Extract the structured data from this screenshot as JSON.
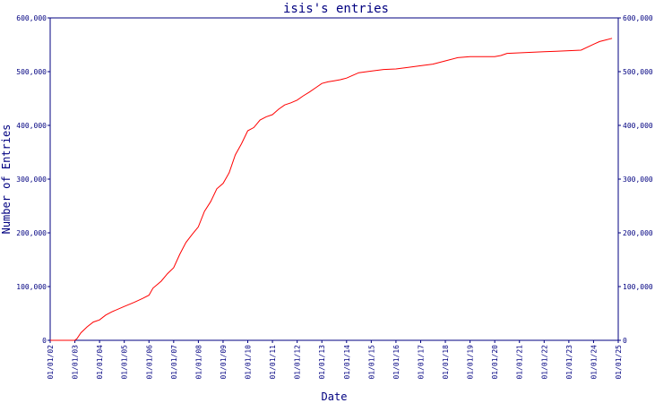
{
  "chart_data": {
    "type": "line",
    "title": "isis's entries",
    "xlabel": "Date",
    "ylabel": "Number of Entries",
    "x_ticks": [
      "01/01/02",
      "01/01/03",
      "01/01/04",
      "01/01/05",
      "01/01/06",
      "01/01/07",
      "01/01/08",
      "01/01/09",
      "01/01/10",
      "01/01/11",
      "01/01/12",
      "01/01/13",
      "01/01/14",
      "01/01/15",
      "01/01/16",
      "01/01/17",
      "01/01/18",
      "01/01/19",
      "01/01/20",
      "01/01/21",
      "01/01/22",
      "01/01/23",
      "01/01/24",
      "01/01/25"
    ],
    "y_ticks": [
      "0",
      "100,000",
      "200,000",
      "300,000",
      "400,000",
      "500,000",
      "600,000"
    ],
    "ylim": [
      0,
      600000
    ],
    "xlim": [
      "2002-01-01",
      "2025-01-01"
    ],
    "grid": false,
    "colors": {
      "line": "#ff0000",
      "axis": "#000080",
      "text": "#000080"
    },
    "series": [
      {
        "x": [
          "2002-01-01",
          "2003-01-01",
          "2003-02-01",
          "2003-04-01",
          "2003-07-01",
          "2003-10-01",
          "2004-01-01",
          "2004-04-01",
          "2004-07-01",
          "2005-01-01",
          "2005-06-01",
          "2005-10-01",
          "2006-01-01",
          "2006-03-01",
          "2006-07-01",
          "2006-10-01",
          "2007-01-01",
          "2007-04-01",
          "2007-07-01",
          "2007-10-01",
          "2008-01-01",
          "2008-04-01",
          "2008-07-01",
          "2008-10-01",
          "2009-01-01",
          "2009-04-01",
          "2009-07-01",
          "2009-10-01",
          "2010-01-01",
          "2010-04-01",
          "2010-07-01",
          "2010-10-01",
          "2011-01-01",
          "2011-04-01",
          "2011-07-01",
          "2011-10-01",
          "2012-01-01",
          "2012-04-01",
          "2012-07-01",
          "2012-10-01",
          "2013-01-01",
          "2013-04-01",
          "2013-07-01",
          "2013-10-01",
          "2014-01-01",
          "2014-04-01",
          "2014-07-01",
          "2015-01-01",
          "2015-07-01",
          "2016-01-01",
          "2016-07-01",
          "2017-01-01",
          "2017-07-01",
          "2018-01-01",
          "2018-07-01",
          "2019-01-01",
          "2019-07-01",
          "2020-01-01",
          "2020-04-01",
          "2020-07-01",
          "2021-01-01",
          "2021-07-01",
          "2022-01-01",
          "2022-07-01",
          "2023-01-01",
          "2023-07-01",
          "2024-01-01",
          "2024-04-01",
          "2024-07-01",
          "2024-10-01"
        ],
        "y": [
          0,
          0,
          3000,
          14000,
          25000,
          34000,
          38000,
          47000,
          53000,
          63000,
          71000,
          78000,
          84000,
          97000,
          110000,
          124000,
          135000,
          160000,
          182000,
          197000,
          211000,
          240000,
          258000,
          282000,
          292000,
          312000,
          345000,
          366000,
          390000,
          396000,
          410000,
          416000,
          420000,
          430000,
          438000,
          442000,
          447000,
          455000,
          462000,
          470000,
          478000,
          481000,
          483000,
          485000,
          488000,
          493000,
          498000,
          501000,
          504000,
          505000,
          508000,
          511000,
          514000,
          520000,
          526000,
          528000,
          528000,
          528000,
          530000,
          534000,
          535000,
          536000,
          537000,
          538000,
          539000,
          540000,
          551000,
          556000,
          559000,
          562000
        ]
      }
    ]
  }
}
